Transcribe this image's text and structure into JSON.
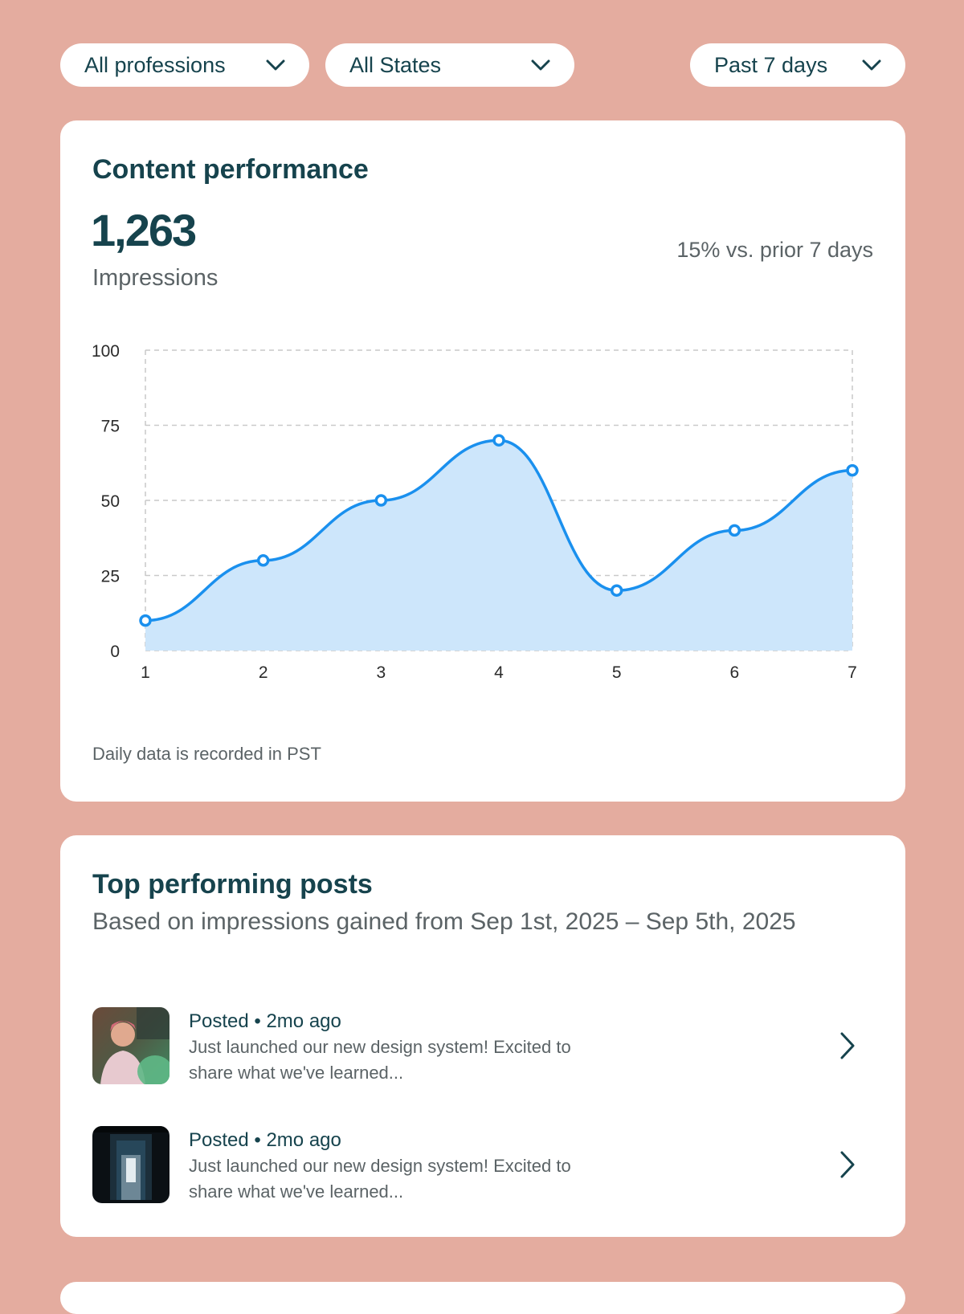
{
  "filters": [
    {
      "label": "All professions"
    },
    {
      "label": "All States"
    },
    {
      "label": "Past 7 days"
    }
  ],
  "content_performance": {
    "title": "Content performance",
    "value": "1,263",
    "metric_label": "Impressions",
    "change": "15% vs. prior 7 days",
    "footnote": "Daily data is recorded in PST"
  },
  "chart_data": {
    "type": "area",
    "x": [
      1,
      2,
      3,
      4,
      5,
      6,
      7
    ],
    "values": [
      10,
      30,
      50,
      70,
      20,
      40,
      60
    ],
    "y_ticks": [
      0,
      25,
      50,
      75,
      100
    ],
    "ylim": [
      0,
      100
    ],
    "xlim": [
      1,
      7
    ],
    "grid": true,
    "line_color": "#1a90ee",
    "fill_color": "#cde6fb"
  },
  "top_posts": {
    "title": "Top performing posts",
    "subtitle": "Based on impressions gained from Sep 1st, 2025 – Sep 5th, 2025",
    "posts": [
      {
        "meta": "Posted • 2mo ago",
        "text": "Just launched our new design system! Excited to share what we've learned..."
      },
      {
        "meta": "Posted • 2mo ago",
        "text": "Just launched our new design system! Excited to share what we've learned..."
      }
    ]
  }
}
